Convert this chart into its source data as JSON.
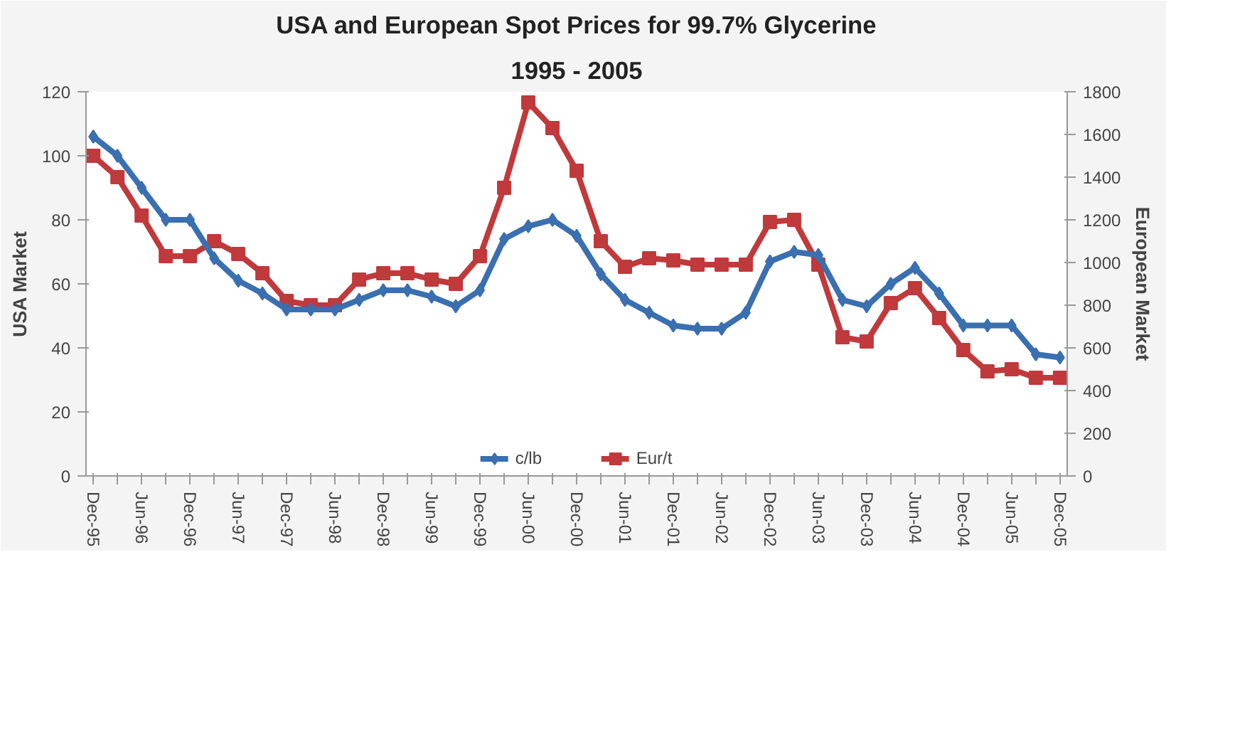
{
  "chart_data": {
    "type": "line",
    "title": "USA and European Spot Prices for 99.7% Glycerine",
    "subtitle": "1995 - 2005",
    "ylabel": "USA Market",
    "y2label": "European Market",
    "categories": [
      "Dec-95",
      null,
      "Jun-96",
      null,
      "Dec-96",
      null,
      "Jun-97",
      null,
      "Dec-97",
      null,
      "Jun-98",
      null,
      "Dec-98",
      null,
      "Jun-99",
      null,
      "Dec-99",
      null,
      "Jun-00",
      null,
      "Dec-00",
      null,
      "Jun-01",
      null,
      "Dec-01",
      null,
      "Jun-02",
      null,
      "Dec-02",
      null,
      "Jun-03",
      null,
      "Dec-03",
      null,
      "Jun-04",
      null,
      "Dec-04",
      null,
      "Jun-05",
      null,
      "Dec-05"
    ],
    "series": [
      {
        "name": "c/lb",
        "color": "#3a6fb0",
        "marker": "diamond",
        "values": [
          106,
          100,
          90,
          80,
          80,
          68,
          61,
          57,
          52,
          52,
          52,
          55,
          58,
          58,
          56,
          53,
          58,
          74,
          78,
          80,
          75,
          63,
          55,
          51,
          47,
          46,
          46,
          51,
          67,
          70,
          69,
          55,
          53,
          60,
          65,
          57,
          47,
          47,
          47,
          38,
          37
        ]
      },
      {
        "name": "Eur/t",
        "color": "#c0393b",
        "marker": "square",
        "axis": "y2",
        "values": [
          1500,
          1400,
          1220,
          1030,
          1030,
          1100,
          1040,
          950,
          820,
          800,
          800,
          920,
          950,
          950,
          920,
          900,
          1030,
          1350,
          1750,
          1630,
          1430,
          1100,
          980,
          1020,
          1010,
          990,
          990,
          990,
          1190,
          1200,
          990,
          650,
          630,
          810,
          880,
          740,
          590,
          490,
          500,
          460,
          460
        ]
      }
    ],
    "ylim": [
      0,
      120
    ],
    "yticks": [
      0,
      20,
      40,
      60,
      80,
      100,
      120
    ],
    "y2lim": [
      0,
      1800
    ],
    "y2ticks": [
      0,
      200,
      400,
      600,
      800,
      1000,
      1200,
      1400,
      1600,
      1800
    ],
    "grid": false,
    "legend": "bottom",
    "line_style": "solid"
  }
}
